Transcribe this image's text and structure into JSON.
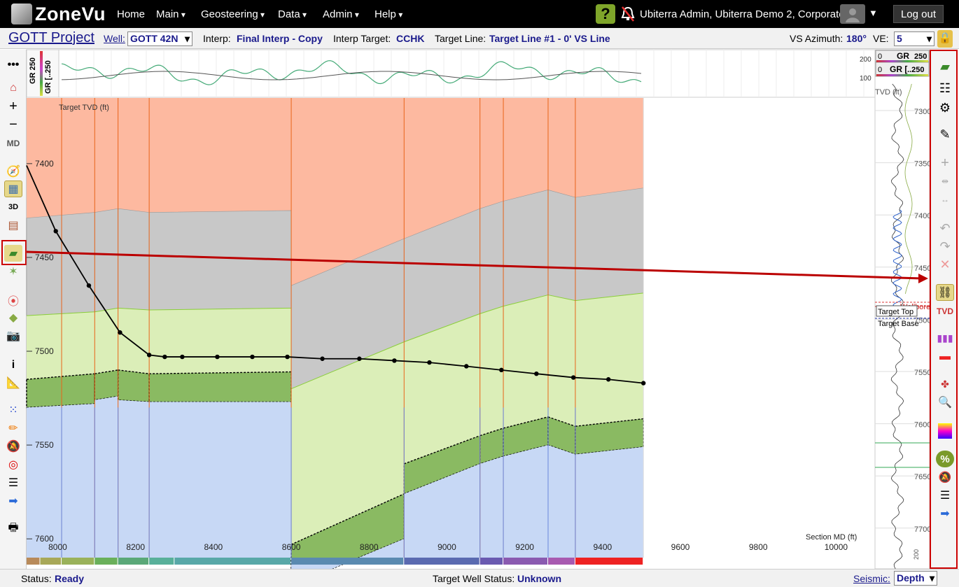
{
  "app": {
    "name": "ZoneVu"
  },
  "nav": {
    "home": "Home",
    "main": "Main",
    "geosteering": "Geosteering",
    "data": "Data",
    "admin": "Admin",
    "help": "Help"
  },
  "user": {
    "name": "Ubiterra Admin, Ubiterra Demo 2, Corporate",
    "logout": "Log out"
  },
  "project": {
    "title": "GOTT Project",
    "well_label": "Well:",
    "well_value": "GOTT 42N",
    "interp_label": "Interp:",
    "interp_value": "Final Interp - Copy",
    "target_label": "Interp Target:",
    "target_value": "CCHK",
    "targetline_label": "Target Line:",
    "targetline_value": "Target Line #1 - 0' VS Line",
    "vs_label": "VS Azimuth:",
    "vs_value": "180°",
    "ve_label": "VE:",
    "ve_value": "5"
  },
  "log_track": {
    "gr_top": "GR 250",
    "gr_bottom": "GR [..250",
    "scale_top": "200",
    "scale_mid": "100",
    "right_gr1": "GR",
    "right_gr1_scale_l": "0",
    "right_gr1_scale_r": "250",
    "right_gr2": "GR [",
    "right_gr2_scale_l": "0",
    "right_gr2_scale_r": "..250"
  },
  "chart_data": {
    "type": "line",
    "title": "",
    "xlabel": "Section MD (ft)",
    "ylabel": "Target TVD (ft)",
    "xlim": [
      7920,
      10100
    ],
    "ylim": [
      7365,
      7610
    ],
    "x_ticks": [
      8000,
      8200,
      8400,
      8600,
      8800,
      9000,
      9200,
      9400,
      9600,
      9800,
      10000
    ],
    "y_ticks": [
      7400,
      7450,
      7500,
      7550,
      7600
    ],
    "faults": [
      8010,
      8095,
      8155,
      8235,
      8600,
      8890,
      9085,
      9145,
      9260,
      9330
    ],
    "wellbore": {
      "x": [
        7920,
        7995,
        8080,
        8160,
        8235,
        8275,
        8320,
        8410,
        8500,
        8590,
        8680,
        8775,
        8865,
        8955,
        9050,
        9140,
        9230,
        9325,
        9415,
        9505
      ],
      "y": [
        7401,
        7436,
        7465,
        7490,
        7502,
        7503,
        7503,
        7503,
        7503,
        7503,
        7504,
        7504,
        7505,
        7506,
        7508,
        7510,
        7512,
        7514,
        7515,
        7517
      ]
    },
    "blocks": [
      {
        "x": [
          7920,
          8095
        ],
        "gray_top": [
          7429,
          7426
        ],
        "green_top": [
          7481,
          7479
        ],
        "dark_top": [
          7515,
          7512
        ],
        "dark_bot": [
          7530,
          7528
        ]
      },
      {
        "x": [
          8095,
          8155
        ],
        "gray_top": [
          7426,
          7424
        ],
        "green_top": [
          7479,
          7477
        ],
        "dark_top": [
          7512,
          7510
        ],
        "dark_bot": [
          7526,
          7524
        ]
      },
      {
        "x": [
          8155,
          8235
        ],
        "gray_top": [
          7424,
          7426
        ],
        "green_top": [
          7477,
          7478
        ],
        "dark_top": [
          7510,
          7512
        ],
        "dark_bot": [
          7526,
          7527
        ]
      },
      {
        "x": [
          8235,
          8600
        ],
        "gray_top": [
          7426,
          7425
        ],
        "green_top": [
          7478,
          7477
        ],
        "dark_top": [
          7512,
          7511
        ],
        "dark_bot": [
          7527,
          7527
        ]
      },
      {
        "x": [
          8600,
          8890
        ],
        "gray_top": [
          7465,
          7440
        ],
        "green_top": [
          7520,
          7495
        ],
        "dark_top": [
          7603,
          7576
        ],
        "dark_bot": [
          7625,
          7600
        ]
      },
      {
        "x": [
          8890,
          9085
        ],
        "gray_top": [
          7440,
          7424
        ],
        "green_top": [
          7495,
          7480
        ],
        "dark_top": [
          7560,
          7545
        ],
        "dark_bot": [
          7576,
          7560
        ]
      },
      {
        "x": [
          9085,
          9145
        ],
        "gray_top": [
          7424,
          7420
        ],
        "green_top": [
          7480,
          7476
        ],
        "dark_top": [
          7545,
          7541
        ],
        "dark_bot": [
          7560,
          7556
        ]
      },
      {
        "x": [
          9145,
          9260
        ],
        "gray_top": [
          7420,
          7414
        ],
        "green_top": [
          7476,
          7470
        ],
        "dark_top": [
          7541,
          7535
        ],
        "dark_bot": [
          7556,
          7550
        ]
      },
      {
        "x": [
          9260,
          9330
        ],
        "gray_top": [
          7414,
          7418
        ],
        "green_top": [
          7470,
          7473
        ],
        "dark_top": [
          7535,
          7540
        ],
        "dark_bot": [
          7550,
          7555
        ]
      },
      {
        "x": [
          9330,
          9505
        ],
        "gray_top": [
          7418,
          7413
        ],
        "green_top": [
          7473,
          7469
        ],
        "dark_top": [
          7540,
          7536
        ],
        "dark_bot": [
          7555,
          7551
        ]
      }
    ]
  },
  "right_log": {
    "ticks": [
      "7300",
      "7350",
      "7400",
      "7450",
      "7500",
      "7550",
      "7600",
      "7650",
      "7700"
    ],
    "tvd_label": "TVD (ft)",
    "target_top": "Target Top",
    "target_base": "Target Base",
    "wellbore": "Wellbore",
    "bottom_scale": "200"
  },
  "status": {
    "label": "Status:",
    "value": "Ready",
    "target_label": "Target Well Status:",
    "target_value": "Unknown",
    "seismic_label": "Seismic:",
    "seismic_value": "Depth"
  }
}
